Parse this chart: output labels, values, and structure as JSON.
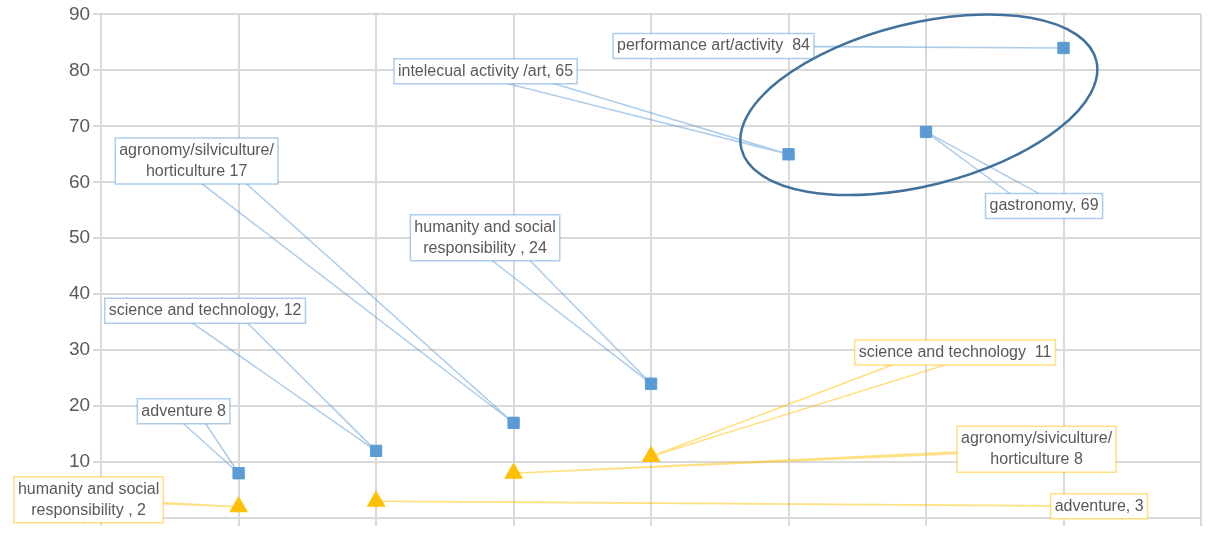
{
  "chart_data": {
    "type": "scatter",
    "categories": [
      null,
      null,
      null,
      null,
      null,
      null,
      null
    ],
    "ylim": [
      0,
      90
    ],
    "yticks": [
      0,
      10,
      20,
      30,
      40,
      50,
      60,
      70,
      80,
      90
    ],
    "grid": true,
    "tick_labels": "y",
    "series": [
      {
        "color": "#5b9bd5",
        "marker": "square",
        "values": [
          8,
          12,
          17,
          24,
          65,
          69,
          84
        ]
      },
      {
        "color": "#ffc000",
        "marker": "triangle",
        "values": [
          2,
          3,
          8,
          11,
          null,
          null,
          null
        ]
      }
    ],
    "annotations": [
      "adventure 8",
      "science and technology, 12",
      "agronomy/silviculture/\nhorticulture 17",
      "humanity and social\nresponsibility , 24",
      "intelecual activity /art, 65",
      "gastronomy, 69",
      "performance art/activity  84",
      "humanity and social\nresponsibility , 2",
      "adventure, 3",
      "agronomy/siviculture/\nhorticulture 8",
      "science and technology  11"
    ]
  }
}
